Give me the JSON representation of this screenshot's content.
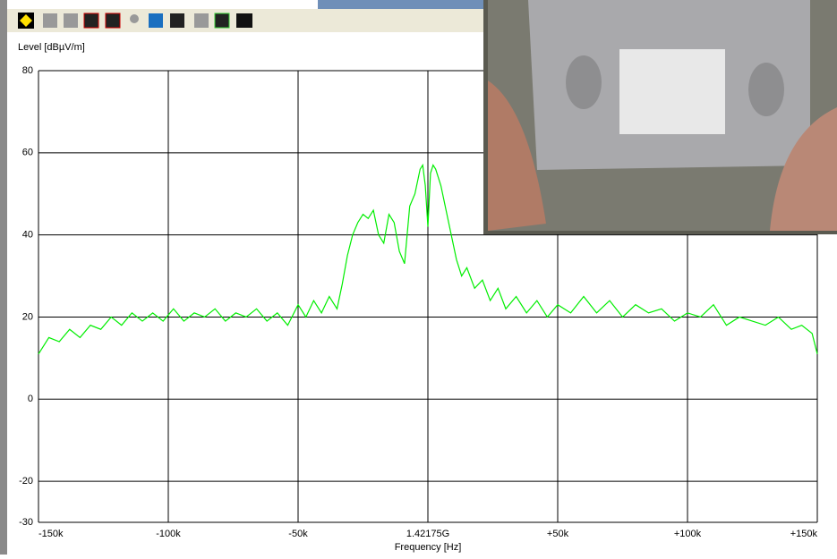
{
  "chart_data": {
    "type": "line",
    "y_label": "Level [dBµV/m]",
    "x_label": "Frequency [Hz]",
    "color": "#00ee00",
    "grid": true,
    "xlim": [
      -150,
      150
    ],
    "ylim": [
      -30,
      80
    ],
    "xticks": [
      {
        "value": -150,
        "label": "-150k"
      },
      {
        "value": -100,
        "label": "-100k"
      },
      {
        "value": -50,
        "label": "-50k"
      },
      {
        "value": 0,
        "label": "1.42175G"
      },
      {
        "value": 50,
        "label": "+50k"
      },
      {
        "value": 100,
        "label": "+100k"
      },
      {
        "value": 150,
        "label": "+150k"
      }
    ],
    "yticks": [
      -30,
      -20,
      0,
      20,
      40,
      60,
      80
    ],
    "x": [
      -150,
      -146,
      -142,
      -138,
      -134,
      -130,
      -126,
      -122,
      -118,
      -114,
      -110,
      -106,
      -102,
      -98,
      -94,
      -90,
      -86,
      -82,
      -78,
      -74,
      -70,
      -66,
      -62,
      -58,
      -54,
      -50,
      -47,
      -44,
      -41,
      -38,
      -35,
      -33,
      -31,
      -29,
      -27,
      -25,
      -23,
      -21,
      -19,
      -17,
      -15,
      -13,
      -11,
      -9,
      -7,
      -5,
      -3,
      -2,
      -1,
      0,
      1,
      2,
      3,
      5,
      7,
      9,
      11,
      13,
      15,
      18,
      21,
      24,
      27,
      30,
      34,
      38,
      42,
      46,
      50,
      55,
      60,
      65,
      70,
      75,
      80,
      85,
      90,
      95,
      100,
      105,
      110,
      115,
      120,
      125,
      130,
      135,
      140,
      144,
      148,
      150
    ],
    "values": [
      11,
      15,
      14,
      17,
      15,
      18,
      17,
      20,
      18,
      21,
      19,
      21,
      19,
      22,
      19,
      21,
      20,
      22,
      19,
      21,
      20,
      22,
      19,
      21,
      18,
      23,
      20,
      24,
      21,
      25,
      22,
      28,
      35,
      40,
      43,
      45,
      44,
      46,
      40,
      38,
      45,
      43,
      36,
      33,
      47,
      50,
      56,
      57,
      52,
      42,
      55,
      57,
      56,
      52,
      46,
      40,
      34,
      30,
      32,
      27,
      29,
      24,
      27,
      22,
      25,
      21,
      24,
      20,
      23,
      21,
      25,
      21,
      24,
      20,
      23,
      21,
      22,
      19,
      21,
      20,
      23,
      18,
      20,
      19,
      18,
      20,
      17,
      18,
      16,
      11
    ]
  }
}
